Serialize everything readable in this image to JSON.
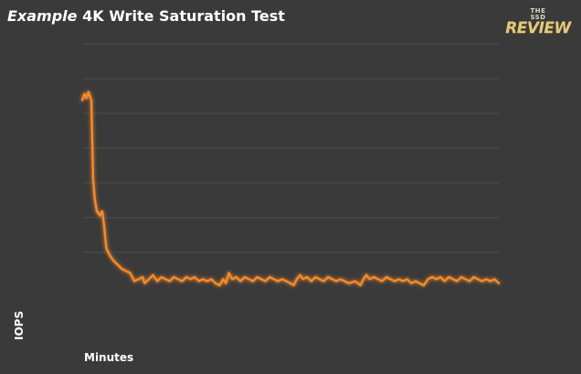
{
  "title": {
    "italic": "Example",
    "rest": " 4K Write Saturation Test"
  },
  "logo": {
    "line1": "THE",
    "line2": "SSD",
    "line3": "REVIEW"
  },
  "colors": {
    "background": "#3a3a3a",
    "series": "#f58a2a",
    "grid": "#4e4e4e"
  },
  "chart_data": {
    "type": "line",
    "title": "Example 4K Write Saturation Test",
    "xlabel": "Minutes",
    "ylabel": "IOPS",
    "grid": true,
    "xlim": [
      0,
      100
    ],
    "ylim": [
      0,
      100
    ],
    "series": [
      {
        "values": [
          [
            0.0,
            90
          ],
          [
            0.5,
            93
          ],
          [
            1.0,
            91
          ],
          [
            1.5,
            94
          ],
          [
            2.2,
            90
          ],
          [
            2.6,
            52
          ],
          [
            3.0,
            42
          ],
          [
            3.5,
            36
          ],
          [
            4.2,
            34
          ],
          [
            4.8,
            36
          ],
          [
            5.2,
            30
          ],
          [
            5.8,
            18
          ],
          [
            6.5,
            15
          ],
          [
            7.5,
            12
          ],
          [
            8.5,
            10
          ],
          [
            9.5,
            8
          ],
          [
            10.5,
            7
          ],
          [
            11.5,
            6
          ],
          [
            12.5,
            2
          ],
          [
            13.5,
            3
          ],
          [
            14.5,
            4
          ],
          [
            15.0,
            1
          ],
          [
            16.0,
            3
          ],
          [
            17.0,
            5
          ],
          [
            18.0,
            2
          ],
          [
            19.0,
            4
          ],
          [
            20.0,
            3
          ],
          [
            21.0,
            2
          ],
          [
            22.0,
            4
          ],
          [
            23.0,
            3
          ],
          [
            24.0,
            2
          ],
          [
            25.0,
            4
          ],
          [
            26.0,
            3
          ],
          [
            27.0,
            4
          ],
          [
            28.0,
            2
          ],
          [
            29.0,
            3
          ],
          [
            30.0,
            2
          ],
          [
            31.0,
            3
          ],
          [
            32.0,
            1
          ],
          [
            33.0,
            0
          ],
          [
            33.8,
            3
          ],
          [
            34.5,
            1
          ],
          [
            35.2,
            6
          ],
          [
            36.0,
            3
          ],
          [
            37.0,
            4
          ],
          [
            38.0,
            2
          ],
          [
            39.0,
            4
          ],
          [
            40.0,
            3
          ],
          [
            41.0,
            2
          ],
          [
            42.0,
            4
          ],
          [
            43.0,
            3
          ],
          [
            44.0,
            2
          ],
          [
            45.0,
            4
          ],
          [
            46.0,
            3
          ],
          [
            47.0,
            2
          ],
          [
            48.0,
            3
          ],
          [
            49.0,
            2
          ],
          [
            50.0,
            1
          ],
          [
            50.8,
            0
          ],
          [
            51.5,
            3
          ],
          [
            52.3,
            5
          ],
          [
            53.0,
            3
          ],
          [
            54.0,
            4
          ],
          [
            55.0,
            2
          ],
          [
            56.0,
            4
          ],
          [
            57.0,
            3
          ],
          [
            58.0,
            2
          ],
          [
            59.0,
            4
          ],
          [
            60.0,
            3
          ],
          [
            61.0,
            2
          ],
          [
            62.0,
            3
          ],
          [
            63.0,
            2
          ],
          [
            64.0,
            1
          ],
          [
            65.5,
            2
          ],
          [
            66.8,
            0
          ],
          [
            67.5,
            3
          ],
          [
            68.2,
            5
          ],
          [
            69.0,
            3
          ],
          [
            70.0,
            4
          ],
          [
            71.0,
            3
          ],
          [
            72.0,
            2
          ],
          [
            73.0,
            4
          ],
          [
            74.0,
            3
          ],
          [
            75.0,
            2
          ],
          [
            76.0,
            3
          ],
          [
            77.0,
            2
          ],
          [
            78.0,
            3
          ],
          [
            79.0,
            1
          ],
          [
            80.0,
            2
          ],
          [
            81.0,
            1
          ],
          [
            82.0,
            0
          ],
          [
            83.0,
            3
          ],
          [
            84.0,
            4
          ],
          [
            85.0,
            3
          ],
          [
            86.0,
            4
          ],
          [
            87.0,
            2
          ],
          [
            88.0,
            4
          ],
          [
            89.0,
            3
          ],
          [
            90.0,
            2
          ],
          [
            91.0,
            4
          ],
          [
            92.0,
            3
          ],
          [
            93.0,
            2
          ],
          [
            94.0,
            4
          ],
          [
            95.0,
            3
          ],
          [
            96.0,
            2
          ],
          [
            97.0,
            3
          ],
          [
            98.0,
            2
          ],
          [
            99.0,
            3
          ],
          [
            100.0,
            1
          ]
        ]
      }
    ]
  }
}
